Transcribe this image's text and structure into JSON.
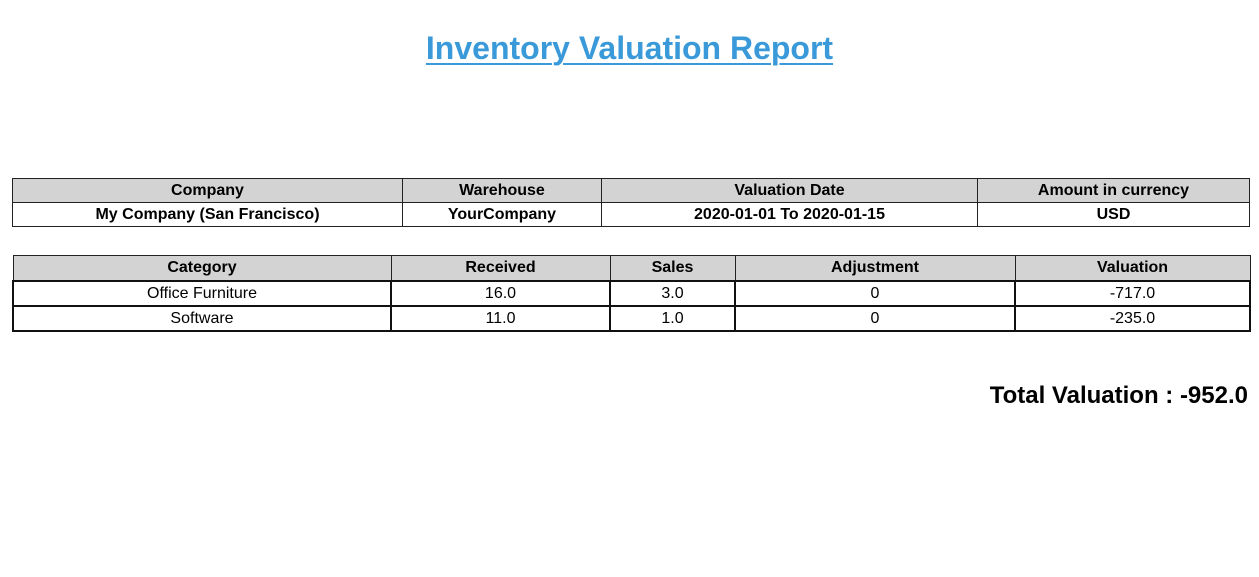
{
  "report": {
    "title": "Inventory Valuation Report"
  },
  "info_table": {
    "headers": [
      "Company",
      "Warehouse",
      "Valuation Date",
      "Amount in currency"
    ],
    "row": [
      "My Company (San Francisco)",
      "YourCompany",
      "2020-01-01 To 2020-01-15",
      "USD"
    ]
  },
  "category_table": {
    "headers": [
      "Category",
      "Received",
      "Sales",
      "Adjustment",
      "Valuation"
    ],
    "rows": [
      [
        "Office Furniture",
        "16.0",
        "3.0",
        "0",
        "-717.0"
      ],
      [
        "Software",
        "11.0",
        "1.0",
        "0",
        "-235.0"
      ]
    ]
  },
  "total": {
    "label": "Total Valuation :",
    "value": "-952.0"
  }
}
